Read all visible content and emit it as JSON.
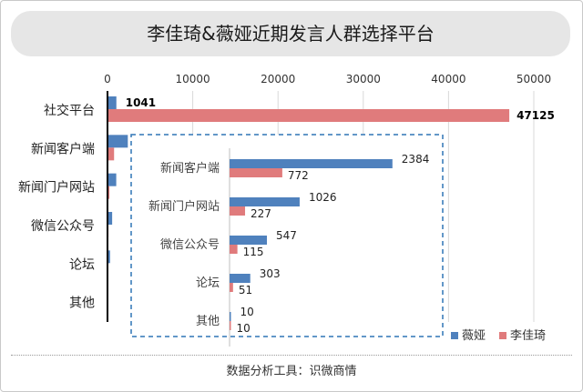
{
  "title": "李佳琦&薇娅近期发言人群选择平台",
  "footer": "数据分析工具：识微商情",
  "colors": {
    "weiya": "#4f81bd",
    "lijiaqi": "#e07b7c",
    "axis": "#000000",
    "grid": "#d9d9d9",
    "inset_border": "#2e75b6"
  },
  "chart_data": [
    {
      "type": "bar",
      "orientation": "horizontal",
      "categories": [
        "社交平台",
        "新闻客户端",
        "新闻门户网站",
        "微信公众号",
        "论坛",
        "其他"
      ],
      "series": [
        {
          "name": "薇娅",
          "values": [
            1041,
            2384,
            1026,
            547,
            303,
            10
          ]
        },
        {
          "name": "李佳琦",
          "values": [
            47125,
            772,
            227,
            115,
            51,
            10
          ]
        }
      ],
      "xlim": [
        0,
        50000
      ],
      "xticks": [
        0,
        10000,
        20000,
        30000,
        40000,
        50000
      ],
      "data_labels_shown": {
        "社交平台": true
      },
      "grid": true,
      "axis_position": "top"
    },
    {
      "type": "bar",
      "orientation": "horizontal",
      "categories": [
        "新闻客户端",
        "新闻门户网站",
        "微信公众号",
        "论坛",
        "其他"
      ],
      "series": [
        {
          "name": "薇娅",
          "values": [
            2384,
            1026,
            547,
            303,
            10
          ]
        },
        {
          "name": "李佳琦",
          "values": [
            772,
            227,
            115,
            51,
            10
          ]
        }
      ],
      "legend": {
        "position": "bottom-right",
        "entries": [
          "薇娅",
          "李佳琦"
        ]
      },
      "grid": false
    }
  ]
}
